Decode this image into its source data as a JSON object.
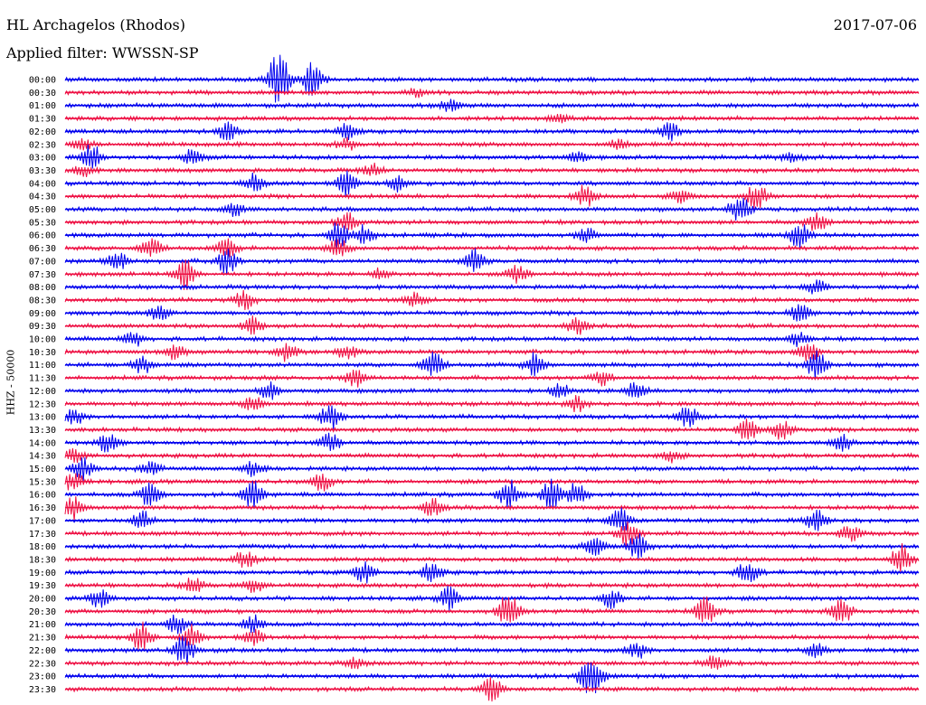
{
  "header": {
    "title": "HL Archagelos (Rhodos)",
    "date": "2017-07-06",
    "filter": "Applied filter: WWSSN-SP"
  },
  "chart_data": {
    "type": "seismogram",
    "title": "HL Archagelos (Rhodos)",
    "date": "2017-07-06",
    "filter": "WWSSN-SP",
    "ylabel": "HHZ - 50000",
    "row_interval_minutes": 30,
    "colors": {
      "even_rows": "#0000ee",
      "odd_rows": "#ee1144"
    },
    "rows": [
      {
        "time": "00:00",
        "events": [
          [
            0.25,
            34
          ],
          [
            0.29,
            20
          ]
        ]
      },
      {
        "time": "00:30",
        "events": [
          [
            0.41,
            4
          ]
        ]
      },
      {
        "time": "01:00",
        "events": [
          [
            0.45,
            6
          ]
        ]
      },
      {
        "time": "01:30",
        "events": [
          [
            0.58,
            5
          ]
        ]
      },
      {
        "time": "02:00",
        "events": [
          [
            0.19,
            10
          ],
          [
            0.33,
            8
          ],
          [
            0.71,
            10
          ]
        ]
      },
      {
        "time": "02:30",
        "events": [
          [
            0.02,
            6
          ],
          [
            0.33,
            6
          ],
          [
            0.65,
            5
          ]
        ]
      },
      {
        "time": "03:00",
        "events": [
          [
            0.03,
            16
          ],
          [
            0.15,
            10
          ],
          [
            0.6,
            6
          ],
          [
            0.85,
            5
          ]
        ]
      },
      {
        "time": "03:30",
        "events": [
          [
            0.02,
            6
          ],
          [
            0.36,
            6
          ]
        ]
      },
      {
        "time": "04:00",
        "events": [
          [
            0.22,
            10
          ],
          [
            0.33,
            14
          ],
          [
            0.39,
            8
          ]
        ]
      },
      {
        "time": "04:30",
        "events": [
          [
            0.61,
            12
          ],
          [
            0.72,
            8
          ],
          [
            0.81,
            14
          ]
        ]
      },
      {
        "time": "05:00",
        "events": [
          [
            0.2,
            8
          ],
          [
            0.79,
            16
          ]
        ]
      },
      {
        "time": "05:30",
        "events": [
          [
            0.33,
            10
          ],
          [
            0.88,
            10
          ]
        ]
      },
      {
        "time": "06:00",
        "events": [
          [
            0.32,
            14
          ],
          [
            0.35,
            10
          ],
          [
            0.61,
            8
          ],
          [
            0.86,
            14
          ]
        ]
      },
      {
        "time": "06:30",
        "events": [
          [
            0.1,
            12
          ],
          [
            0.19,
            10
          ],
          [
            0.32,
            10
          ]
        ]
      },
      {
        "time": "07:00",
        "events": [
          [
            0.06,
            12
          ],
          [
            0.19,
            14
          ],
          [
            0.48,
            14
          ]
        ]
      },
      {
        "time": "07:30",
        "events": [
          [
            0.14,
            18
          ],
          [
            0.37,
            6
          ],
          [
            0.53,
            10
          ]
        ]
      },
      {
        "time": "08:00",
        "events": [
          [
            0.88,
            8
          ]
        ]
      },
      {
        "time": "08:30",
        "events": [
          [
            0.21,
            10
          ],
          [
            0.41,
            8
          ]
        ]
      },
      {
        "time": "09:00",
        "events": [
          [
            0.11,
            8
          ],
          [
            0.86,
            10
          ]
        ]
      },
      {
        "time": "09:30",
        "events": [
          [
            0.22,
            10
          ],
          [
            0.6,
            10
          ]
        ]
      },
      {
        "time": "10:00",
        "events": [
          [
            0.08,
            8
          ],
          [
            0.86,
            8
          ]
        ]
      },
      {
        "time": "10:30",
        "events": [
          [
            0.13,
            10
          ],
          [
            0.26,
            10
          ],
          [
            0.33,
            8
          ],
          [
            0.87,
            12
          ]
        ]
      },
      {
        "time": "11:00",
        "events": [
          [
            0.09,
            10
          ],
          [
            0.43,
            16
          ],
          [
            0.55,
            12
          ],
          [
            0.88,
            16
          ]
        ]
      },
      {
        "time": "11:30",
        "events": [
          [
            0.34,
            10
          ],
          [
            0.63,
            8
          ]
        ]
      },
      {
        "time": "12:00",
        "events": [
          [
            0.24,
            10
          ],
          [
            0.58,
            8
          ],
          [
            0.67,
            10
          ]
        ]
      },
      {
        "time": "12:30",
        "events": [
          [
            0.22,
            8
          ],
          [
            0.6,
            8
          ]
        ]
      },
      {
        "time": "13:00",
        "events": [
          [
            0.01,
            8
          ],
          [
            0.31,
            14
          ],
          [
            0.73,
            12
          ]
        ]
      },
      {
        "time": "13:30",
        "events": [
          [
            0.8,
            12
          ],
          [
            0.84,
            10
          ]
        ]
      },
      {
        "time": "14:00",
        "events": [
          [
            0.05,
            10
          ],
          [
            0.31,
            10
          ],
          [
            0.91,
            10
          ]
        ]
      },
      {
        "time": "14:30",
        "events": [
          [
            0.01,
            8
          ],
          [
            0.71,
            6
          ]
        ]
      },
      {
        "time": "15:00",
        "events": [
          [
            0.02,
            12
          ],
          [
            0.1,
            8
          ],
          [
            0.22,
            8
          ]
        ]
      },
      {
        "time": "15:30",
        "events": [
          [
            0.01,
            10
          ],
          [
            0.3,
            10
          ]
        ]
      },
      {
        "time": "16:00",
        "events": [
          [
            0.1,
            14
          ],
          [
            0.22,
            16
          ],
          [
            0.52,
            16
          ],
          [
            0.57,
            16
          ],
          [
            0.6,
            14
          ]
        ]
      },
      {
        "time": "16:30",
        "events": [
          [
            0.01,
            14
          ],
          [
            0.43,
            10
          ]
        ]
      },
      {
        "time": "17:00",
        "events": [
          [
            0.09,
            10
          ],
          [
            0.65,
            14
          ],
          [
            0.88,
            12
          ]
        ]
      },
      {
        "time": "17:30",
        "events": [
          [
            0.66,
            14
          ],
          [
            0.92,
            10
          ]
        ]
      },
      {
        "time": "18:00",
        "events": [
          [
            0.62,
            10
          ],
          [
            0.67,
            14
          ]
        ]
      },
      {
        "time": "18:30",
        "events": [
          [
            0.21,
            10
          ],
          [
            0.98,
            16
          ]
        ]
      },
      {
        "time": "19:00",
        "events": [
          [
            0.35,
            12
          ],
          [
            0.43,
            12
          ],
          [
            0.8,
            14
          ]
        ]
      },
      {
        "time": "19:30",
        "events": [
          [
            0.15,
            8
          ],
          [
            0.22,
            8
          ]
        ]
      },
      {
        "time": "20:00",
        "events": [
          [
            0.04,
            10
          ],
          [
            0.45,
            12
          ],
          [
            0.64,
            10
          ]
        ]
      },
      {
        "time": "20:30",
        "events": [
          [
            0.52,
            20
          ],
          [
            0.75,
            16
          ],
          [
            0.91,
            14
          ]
        ]
      },
      {
        "time": "21:00",
        "events": [
          [
            0.13,
            10
          ],
          [
            0.22,
            10
          ]
        ]
      },
      {
        "time": "21:30",
        "events": [
          [
            0.09,
            16
          ],
          [
            0.15,
            14
          ],
          [
            0.22,
            10
          ]
        ]
      },
      {
        "time": "22:00",
        "events": [
          [
            0.14,
            16
          ],
          [
            0.67,
            8
          ],
          [
            0.88,
            8
          ]
        ]
      },
      {
        "time": "22:30",
        "events": [
          [
            0.34,
            6
          ],
          [
            0.76,
            8
          ]
        ]
      },
      {
        "time": "23:00",
        "events": [
          [
            0.61,
            12
          ],
          [
            0.62,
            16
          ]
        ]
      },
      {
        "time": "23:30",
        "events": [
          [
            0.5,
            14
          ]
        ]
      }
    ]
  }
}
